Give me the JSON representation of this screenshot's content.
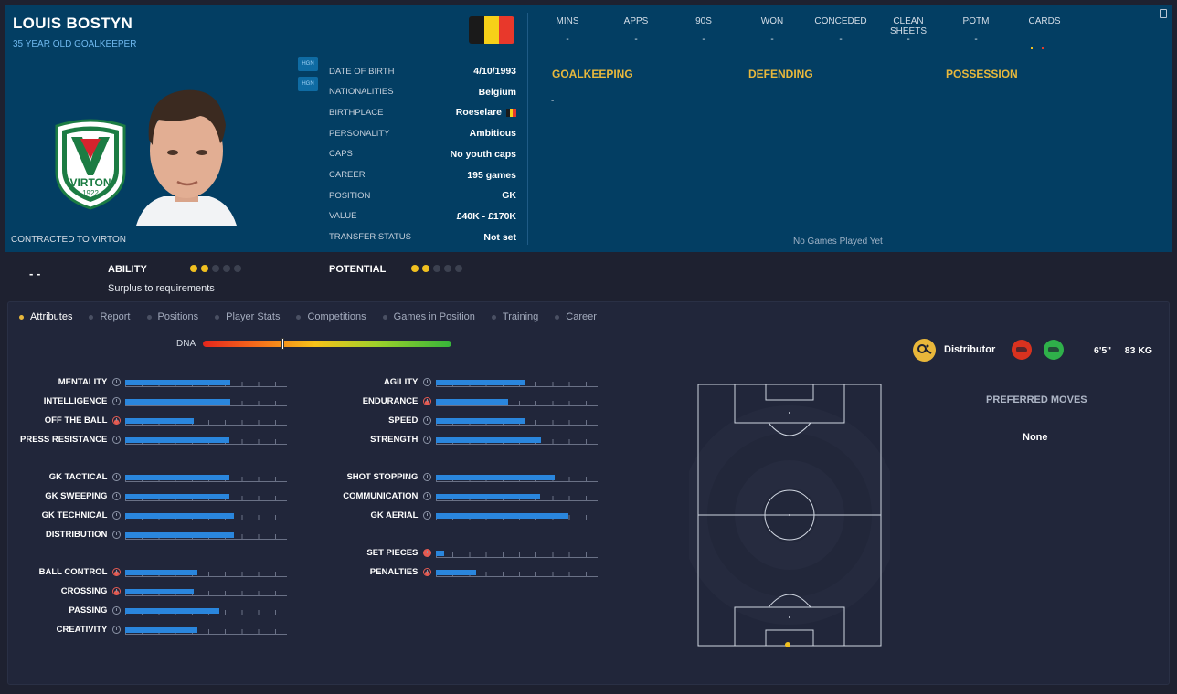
{
  "player": {
    "name": "LOUIS BOSTYN",
    "subtitle": "35 YEAR OLD GOALKEEPER",
    "contract": "CONTRACTED TO VIRTON",
    "club_badge": {
      "name": "VIRTON",
      "year": "1922"
    },
    "side_buttons": [
      "HGN",
      "HGN"
    ]
  },
  "bio": [
    {
      "label": "DATE OF BIRTH",
      "value": "4/10/1993"
    },
    {
      "label": "NATIONALITIES",
      "value": "Belgium"
    },
    {
      "label": "BIRTHPLACE",
      "value": "Roeselare"
    },
    {
      "label": "PERSONALITY",
      "value": "Ambitious"
    },
    {
      "label": "CAPS",
      "value": "No youth caps"
    },
    {
      "label": "CAREER",
      "value": "195  games"
    },
    {
      "label": "POSITION",
      "value": "GK"
    },
    {
      "label": "VALUE",
      "value": "£40K - £170K"
    },
    {
      "label": "TRANSFER STATUS",
      "value": "Not set"
    }
  ],
  "stats": {
    "columns": [
      "MINS",
      "APPS",
      "90S",
      "WON",
      "CONCEDED",
      "CLEAN SHEETS",
      "POTM",
      "CARDS"
    ],
    "values": [
      "-",
      "-",
      "-",
      "-",
      "-",
      "-",
      "-",
      ""
    ],
    "sections": [
      "GOALKEEPING",
      "DEFENDING",
      "POSSESSION"
    ],
    "goalkeeping_value": "-",
    "empty_message": "No Games Played Yet"
  },
  "ability": {
    "dash": "-  -",
    "ability_label": "ABILITY",
    "ability_stars": 2,
    "potential_label": "POTENTIAL",
    "potential_stars": 2,
    "total_stars": 5,
    "status": "Surplus to requirements"
  },
  "tabs": [
    {
      "label": "Attributes",
      "active": true
    },
    {
      "label": "Report",
      "active": false
    },
    {
      "label": "Positions",
      "active": false
    },
    {
      "label": "Player Stats",
      "active": false
    },
    {
      "label": "Competitions",
      "active": false
    },
    {
      "label": "Games in Position",
      "active": false
    },
    {
      "label": "Training",
      "active": false
    },
    {
      "label": "Career",
      "active": false
    }
  ],
  "dna": {
    "label": "DNA",
    "level": 0.32
  },
  "attributes_left": [
    [
      {
        "name": "MENTALITY",
        "value": 0.63,
        "icon": "neutral"
      },
      {
        "name": "INTELLIGENCE",
        "value": 0.63,
        "icon": "neutral"
      },
      {
        "name": "OFF THE BALL",
        "value": 0.41,
        "icon": "red"
      },
      {
        "name": "PRESS RESISTANCE",
        "value": 0.62,
        "icon": "neutral"
      }
    ],
    [
      {
        "name": "GK TACTICAL",
        "value": 0.62,
        "icon": "neutral"
      },
      {
        "name": "GK SWEEPING",
        "value": 0.62,
        "icon": "neutral"
      },
      {
        "name": "GK TECHNICAL",
        "value": 0.65,
        "icon": "neutral"
      },
      {
        "name": "DISTRIBUTION",
        "value": 0.65,
        "icon": "neutral"
      }
    ],
    [
      {
        "name": "BALL CONTROL",
        "value": 0.43,
        "icon": "red"
      },
      {
        "name": "CROSSING",
        "value": 0.41,
        "icon": "red"
      },
      {
        "name": "PASSING",
        "value": 0.56,
        "icon": "neutral"
      },
      {
        "name": "CREATIVITY",
        "value": 0.43,
        "icon": "neutral"
      }
    ]
  ],
  "attributes_right": [
    [
      {
        "name": "AGILITY",
        "value": 0.53,
        "icon": "neutral"
      },
      {
        "name": "ENDURANCE",
        "value": 0.43,
        "icon": "red"
      },
      {
        "name": "SPEED",
        "value": 0.53,
        "icon": "neutral"
      },
      {
        "name": "STRENGTH",
        "value": 0.63,
        "icon": "neutral"
      }
    ],
    [
      {
        "name": "SHOT STOPPING",
        "value": 0.71,
        "icon": "neutral"
      },
      {
        "name": "COMMUNICATION",
        "value": 0.62,
        "icon": "neutral"
      },
      {
        "name": "GK AERIAL",
        "value": 0.79,
        "icon": "neutral"
      }
    ],
    [
      {
        "name": "SET PIECES",
        "value": 0.05,
        "icon": "redfull"
      },
      {
        "name": "PENALTIES",
        "value": 0.24,
        "icon": "red"
      }
    ]
  ],
  "role": {
    "label": "Distributor"
  },
  "physique": "6'5\"     83 KG",
  "preferred_moves": {
    "title": "PREFERRED MOVES",
    "value": "None"
  },
  "colors": {
    "header_bg": "#033e63",
    "accent": "#e8b83c",
    "bar": "#2a86dd"
  }
}
